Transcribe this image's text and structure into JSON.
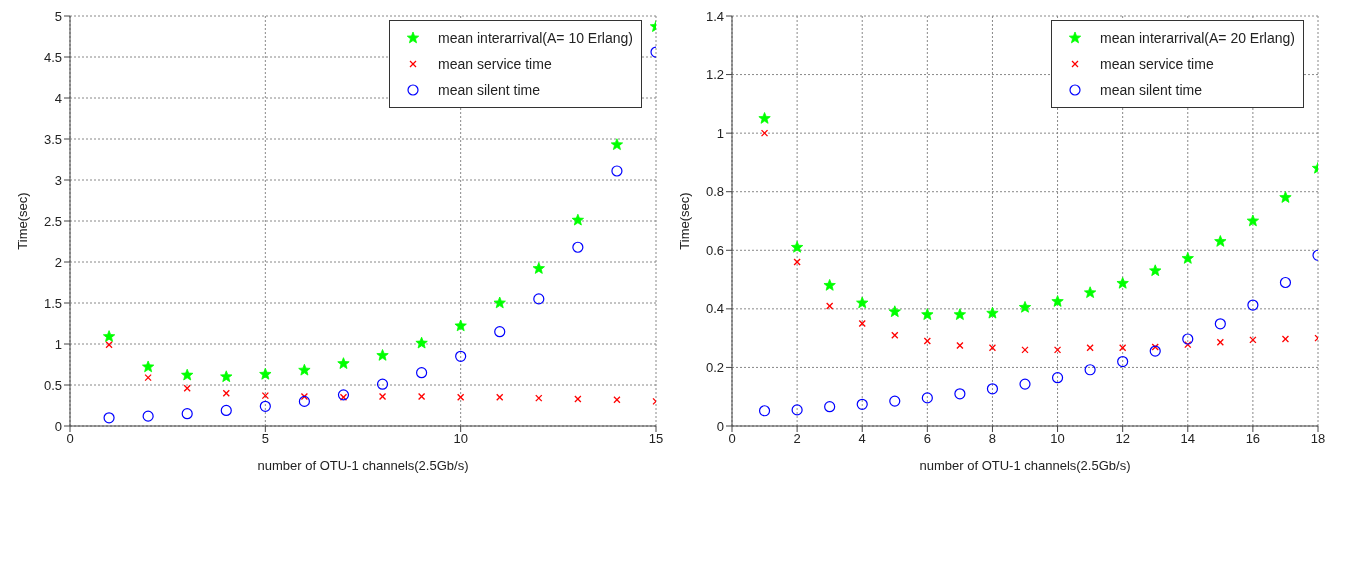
{
  "chart_data": [
    {
      "type": "scatter",
      "xlabel": "number of OTU-1 channels(2.5Gb/s)",
      "ylabel": "Time(sec)",
      "x": [
        1,
        2,
        3,
        4,
        5,
        6,
        7,
        8,
        9,
        10,
        11,
        12,
        13,
        14,
        15
      ],
      "xlim": [
        0,
        15
      ],
      "xticks": [
        0,
        5,
        10,
        15
      ],
      "ylim": [
        0,
        5
      ],
      "yticks": [
        0,
        0.5,
        1,
        1.5,
        2,
        2.5,
        3,
        3.5,
        4,
        4.5,
        5
      ],
      "grid": true,
      "legend": "top right",
      "series": [
        {
          "name": "mean interarrival(A= 10 Erlang)",
          "color": "#00ff00",
          "marker": "star",
          "values": [
            1.09,
            0.72,
            0.62,
            0.6,
            0.63,
            0.68,
            0.76,
            0.86,
            1.01,
            1.22,
            1.5,
            1.92,
            2.51,
            3.43,
            4.87
          ]
        },
        {
          "name": "mean service time",
          "color": "#ff0000",
          "marker": "cross",
          "values": [
            0.99,
            0.59,
            0.46,
            0.4,
            0.37,
            0.36,
            0.35,
            0.36,
            0.36,
            0.35,
            0.35,
            0.34,
            0.33,
            0.32,
            0.3
          ]
        },
        {
          "name": "mean silent time",
          "color": "#0000ff",
          "marker": "circle",
          "values": [
            0.1,
            0.12,
            0.15,
            0.19,
            0.24,
            0.3,
            0.38,
            0.51,
            0.65,
            0.85,
            1.15,
            1.55,
            2.18,
            3.11,
            4.56
          ]
        }
      ]
    },
    {
      "type": "scatter",
      "xlabel": "number of OTU-1 channels(2.5Gb/s)",
      "ylabel": "Time(sec)",
      "x": [
        1,
        2,
        3,
        4,
        5,
        6,
        7,
        8,
        9,
        10,
        11,
        12,
        13,
        14,
        15,
        16,
        17,
        18
      ],
      "xlim": [
        0,
        18
      ],
      "xticks": [
        0,
        2,
        4,
        6,
        8,
        10,
        12,
        14,
        16,
        18
      ],
      "ylim": [
        0,
        1.4
      ],
      "yticks": [
        0,
        0.2,
        0.4,
        0.6,
        0.8,
        1,
        1.2,
        1.4
      ],
      "grid": true,
      "legend": "top right",
      "series": [
        {
          "name": "mean interarrival(A= 20 Erlang)",
          "color": "#00ff00",
          "marker": "star",
          "values": [
            1.05,
            0.61,
            0.48,
            0.42,
            0.39,
            0.38,
            0.38,
            0.385,
            0.405,
            0.425,
            0.455,
            0.487,
            0.53,
            0.572,
            0.63,
            0.7,
            0.78,
            0.88
          ]
        },
        {
          "name": "mean service time",
          "color": "#ff0000",
          "marker": "cross",
          "values": [
            1.0,
            0.56,
            0.41,
            0.35,
            0.31,
            0.29,
            0.275,
            0.267,
            0.26,
            0.26,
            0.267,
            0.267,
            0.27,
            0.278,
            0.286,
            0.294,
            0.297,
            0.3
          ]
        },
        {
          "name": "mean silent time",
          "color": "#0000ff",
          "marker": "circle",
          "values": [
            0.052,
            0.055,
            0.066,
            0.074,
            0.085,
            0.096,
            0.11,
            0.127,
            0.143,
            0.165,
            0.192,
            0.22,
            0.256,
            0.297,
            0.349,
            0.413,
            0.49,
            0.583
          ]
        }
      ]
    }
  ]
}
